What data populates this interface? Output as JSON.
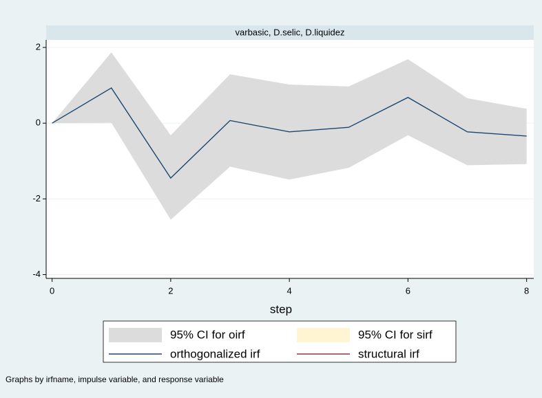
{
  "chart_data": {
    "type": "line",
    "title": "varbasic, D.selic, D.liquidez",
    "x_label": "step",
    "note": "Graphs by irfname, impulse variable, and response variable",
    "x": [
      0,
      1,
      2,
      3,
      4,
      5,
      6,
      7,
      8
    ],
    "series": [
      {
        "name": "95% CI for oirf",
        "kind": "band",
        "color": "#dcdcdc",
        "lower": [
          0,
          0.01,
          -2.55,
          -1.15,
          -1.49,
          -1.18,
          -0.32,
          -1.11,
          -1.08
        ],
        "upper": [
          0,
          1.87,
          -0.32,
          1.29,
          1.02,
          0.97,
          1.69,
          0.66,
          0.38
        ]
      },
      {
        "name": "95% CI for sirf",
        "kind": "band",
        "color": "#fff5d2",
        "lower": [
          null,
          null,
          null,
          null,
          null,
          null,
          null,
          null,
          null
        ],
        "upper": [
          null,
          null,
          null,
          null,
          null,
          null,
          null,
          null,
          null
        ]
      },
      {
        "name": "orthogonalized irf",
        "kind": "line",
        "color": "#1a476f",
        "values": [
          0,
          0.93,
          -1.45,
          0.07,
          -0.23,
          -0.11,
          0.68,
          -0.23,
          -0.34
        ]
      },
      {
        "name": "structural irf",
        "kind": "line",
        "color": "#90353b",
        "values": [
          null,
          null,
          null,
          null,
          null,
          null,
          null,
          null,
          null
        ]
      }
    ],
    "xlim": [
      -0.1,
      8.12
    ],
    "ylim": [
      -4.1,
      2.2
    ],
    "xticks": [
      0,
      2,
      4,
      6,
      8
    ],
    "yticks": [
      -4,
      -2,
      0,
      2
    ],
    "grid": true
  }
}
